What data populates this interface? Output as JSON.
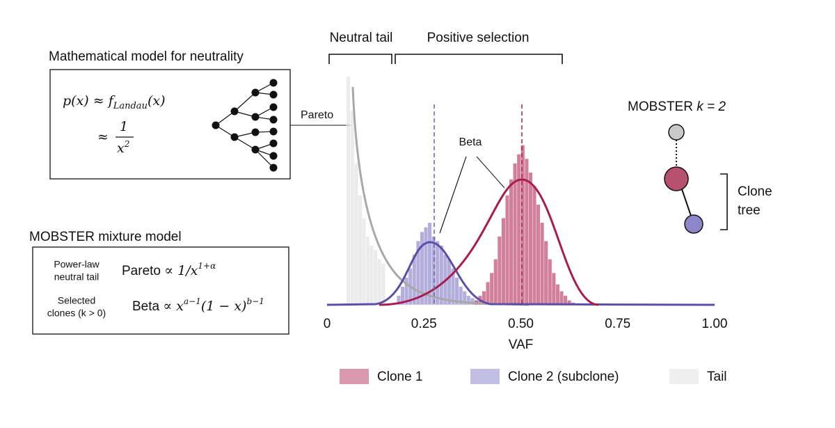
{
  "labels": {
    "neutral_tail": "Neutral tail",
    "positive_selection": "Positive selection",
    "model_title": "Mathematical model for neutrality",
    "formula1": {
      "lhs": "p(x) ≈ f",
      "sub": "Landau",
      "rhs": "(x)"
    },
    "formula2": {
      "approx": "≈",
      "num": "1",
      "den": "x",
      "den_exp": "2"
    },
    "pareto_label": "Pareto",
    "beta_label": "Beta",
    "mobster_k": {
      "name": "MOBSTER ",
      "k": "k = 2"
    },
    "clone_tree": [
      "Clone",
      "tree"
    ],
    "mixture_title": "MOBSTER mixture model",
    "powerlaw": [
      "Power-law",
      "neutral tail"
    ],
    "pareto_formula": {
      "name": "Pareto",
      "rel": "∝ 1/x",
      "exp": "1+α"
    },
    "selected": [
      "Selected",
      "clones (k > 0)"
    ],
    "beta_formula": {
      "name": "Beta",
      "rel": "∝ x",
      "exp1": "a−1",
      "mid": "(1 − x)",
      "exp2": "b−1"
    }
  },
  "chart_data": {
    "type": "histogram",
    "xlabel": "VAF",
    "xlim": [
      0,
      1
    ],
    "ylim": [
      0,
      100
    ],
    "xticks": [
      0,
      0.25,
      {
        "value": 0.5,
        "label": "0.50"
      },
      0.75,
      {
        "value": 1,
        "label": "1.00"
      }
    ],
    "series": [
      {
        "name": "Clone 1",
        "color": "#c25478",
        "bins": [
          0.38,
          0.39,
          0.4,
          0.41,
          0.42,
          0.43,
          0.44,
          0.45,
          0.46,
          0.47,
          0.48,
          0.49,
          0.5,
          0.51,
          0.52,
          0.53,
          0.54,
          0.55,
          0.56,
          0.57,
          0.58,
          0.59,
          0.6,
          0.61,
          0.62,
          0.63,
          0.64
        ],
        "values": [
          2,
          4,
          6,
          10,
          14,
          20,
          30,
          38,
          48,
          55,
          62,
          66,
          70,
          64,
          58,
          52,
          44,
          36,
          28,
          20,
          14,
          9,
          6,
          4,
          2,
          1
        ]
      },
      {
        "name": "Clone 2 (subclone)",
        "color": "#9b93d0",
        "bins": [
          0.18,
          0.19,
          0.2,
          0.21,
          0.22,
          0.23,
          0.24,
          0.25,
          0.26,
          0.27,
          0.28,
          0.29,
          0.3,
          0.31,
          0.32,
          0.33,
          0.34,
          0.35,
          0.36,
          0.37,
          0.38,
          0.39,
          0.4
        ],
        "values": [
          4,
          8,
          12,
          16,
          22,
          28,
          32,
          34,
          36,
          30,
          28,
          26,
          22,
          20,
          16,
          12,
          8,
          6,
          4,
          3,
          2,
          1
        ]
      },
      {
        "name": "Tail",
        "color": "#e4e4e4",
        "bins": [
          0.05,
          0.06,
          0.07,
          0.08,
          0.09,
          0.1,
          0.11,
          0.12,
          0.13,
          0.14,
          0.15
        ],
        "values": [
          100,
          85,
          62,
          48,
          38,
          30,
          26,
          24,
          20,
          18
        ]
      }
    ]
  }
}
